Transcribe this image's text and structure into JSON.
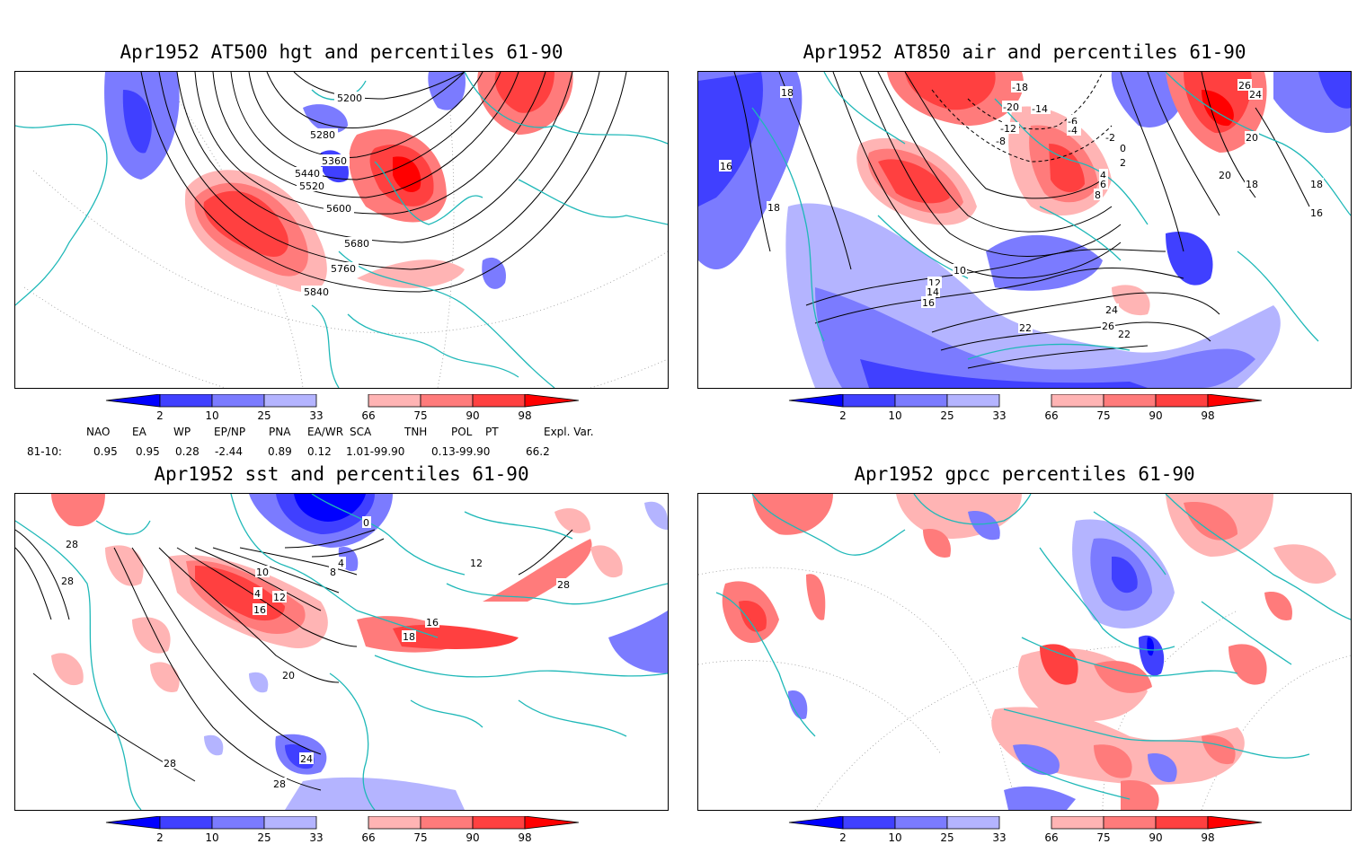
{
  "panels": [
    {
      "id": "hgt",
      "title": "Apr1952 AT500 hgt and percentiles 61-90",
      "contour_labels": [
        "5200",
        "5280",
        "5360",
        "5440",
        "5520",
        "5600",
        "5680",
        "5760",
        "5840"
      ]
    },
    {
      "id": "air",
      "title": "Apr1952 AT850 air and percentiles 61-90",
      "contour_labels": [
        "18",
        "16",
        "18",
        "-18",
        "-20",
        "-14",
        "-12",
        "-6",
        "-4",
        "-2",
        "0",
        "2",
        "4",
        "6",
        "8",
        "-8",
        "10",
        "12",
        "14",
        "16",
        "18",
        "20",
        "22",
        "24",
        "26",
        "22",
        "20",
        "18",
        "16",
        "24",
        "26"
      ]
    },
    {
      "id": "sst",
      "title": "Apr1952 sst and percentiles 61-90",
      "contour_labels": [
        "28",
        "28",
        "0",
        "4",
        "8",
        "10",
        "4",
        "12",
        "16",
        "16",
        "18",
        "20",
        "24",
        "28",
        "28",
        "12",
        "28"
      ]
    },
    {
      "id": "gpcc",
      "title": "Apr1952 gpcc percentiles 61-90",
      "contour_labels": []
    }
  ],
  "colorbar": {
    "labels": [
      "2",
      "10",
      "25",
      "33",
      "66",
      "75",
      "90",
      "98"
    ],
    "colors": {
      "blue_dark": "#0000ff",
      "blue_mid": "#4040ff",
      "blue_light": "#7b7bff",
      "blue_pale": "#b4b4ff",
      "red_pale": "#ffb4b4",
      "red_light": "#ff7b7b",
      "red_mid": "#ff4040",
      "red_dark": "#ff0000"
    }
  },
  "indices": {
    "headers": [
      "NAO",
      "EA",
      "WP",
      "EP/NP",
      "PNA",
      "EA/WR",
      "SCA",
      "TNH",
      "POL",
      "PT",
      "Expl. Var."
    ],
    "row_label": "81-10:",
    "values": [
      "0.95",
      "0.95",
      "0.28",
      "-2.44",
      "0.89",
      "0.12",
      "1.01-99.90",
      "0.13-99.90",
      "66.2"
    ]
  },
  "colors": {
    "coast": "#1fb8b8",
    "contour": "#000000",
    "grid": "#888888"
  }
}
